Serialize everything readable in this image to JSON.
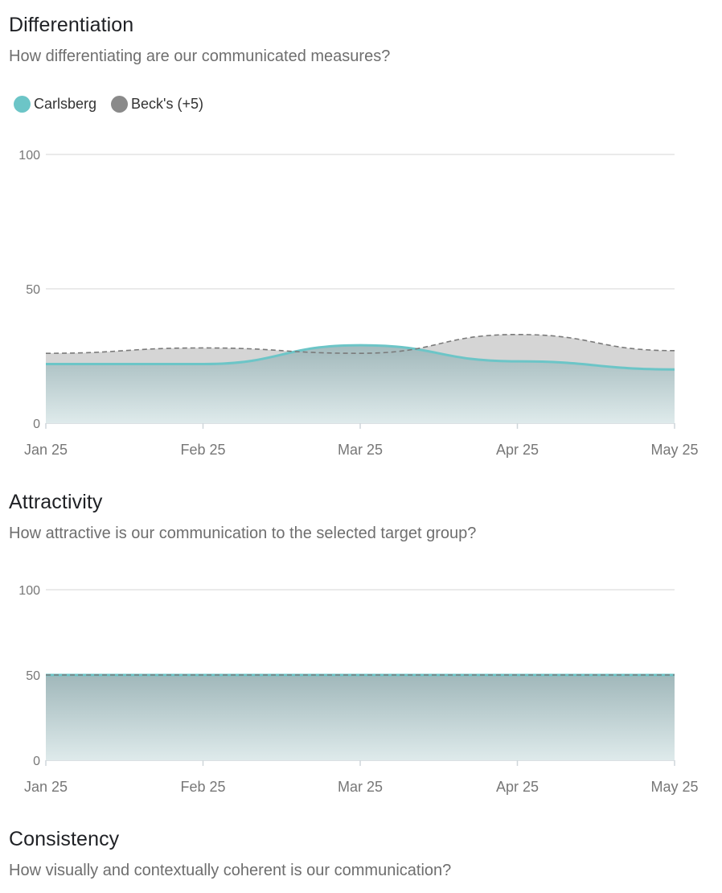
{
  "sections": [
    {
      "title": "Differentiation",
      "subtitle": "How differentiating are our communicated measures?"
    },
    {
      "title": "Attractivity",
      "subtitle": "How attractive is our communication to the selected target group?"
    },
    {
      "title": "Consistency",
      "subtitle": "How visually and contextually coherent is our communication?"
    }
  ],
  "legend": [
    {
      "label": "Carlsberg",
      "color": "#6cc5c7"
    },
    {
      "label": "Beck's (+5)",
      "color": "#8a8a8a"
    }
  ],
  "chart_data": [
    {
      "type": "area",
      "x": [
        "Jan 25",
        "Feb 25",
        "Mar 25",
        "Apr 25",
        "May 25"
      ],
      "ylim": [
        0,
        100
      ],
      "yticks": [
        0,
        50,
        100
      ],
      "series": [
        {
          "name": "Carlsberg",
          "values": [
            22,
            22,
            29,
            23,
            20
          ],
          "color": "#6cc5c7"
        },
        {
          "name": "Beck's (+5)",
          "values": [
            26,
            28,
            26,
            33,
            27
          ],
          "color": "#8a8a8a"
        }
      ]
    },
    {
      "type": "area",
      "x": [
        "Jan 25",
        "Feb 25",
        "Mar 25",
        "Apr 25",
        "May 25"
      ],
      "ylim": [
        0,
        100
      ],
      "yticks": [
        0,
        50,
        100
      ],
      "series": [
        {
          "name": "Carlsberg",
          "values": [
            50,
            50,
            50,
            50,
            50
          ],
          "color": "#6cc5c7"
        },
        {
          "name": "Beck's (+5)",
          "values": [
            50,
            50,
            50,
            50,
            50
          ],
          "color": "#8a8a8a"
        }
      ]
    }
  ]
}
